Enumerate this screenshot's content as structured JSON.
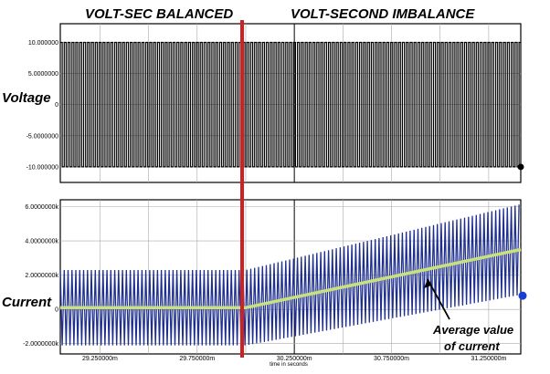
{
  "chart_data": [
    {
      "type": "line",
      "name": "voltage",
      "side_label": "Voltage",
      "yticks": [
        10,
        5,
        0,
        -5,
        -10
      ],
      "ytick_labels": [
        "10.000000",
        "5.0000000",
        "0",
        "-5.0000000",
        "-10.000000"
      ],
      "ylim": [
        -12.5,
        13
      ],
      "square_wave": {
        "high": 10,
        "low": -10,
        "period_ms": 20,
        "start_ms": 29046,
        "end_ms": 31415
      },
      "sections": [
        "VOLT-SEC BALANCED",
        "VOLT-SECOND IMBALANCE"
      ],
      "colors": {
        "trace": "#000000",
        "divider": "#cc2222",
        "grid": "#999999",
        "marker": "#000000"
      }
    },
    {
      "type": "line",
      "name": "current",
      "side_label": "Current",
      "xlabel": "time in seconds",
      "xlim": [
        29046,
        31415
      ],
      "xticks": [
        29250,
        29750,
        30250,
        30750,
        31250
      ],
      "xtick_labels": [
        "29.250000m",
        "29.750000m",
        "30.250000m",
        "30.750000m",
        "31.250000m"
      ],
      "yticks": [
        6,
        4,
        2,
        0,
        -2
      ],
      "ytick_labels": [
        "6.0000000k",
        "4.0000000k",
        "2.0000000k",
        "0",
        "-2.0000000k"
      ],
      "ylim": [
        -2.6,
        6.4
      ],
      "triangle_wave": {
        "amplitude": 2.2,
        "period_ms": 20
      },
      "average_current": {
        "x": [
          29046,
          30000,
          31415
        ],
        "y": [
          0.1,
          0.1,
          3.5
        ]
      },
      "annotation": [
        "Average value",
        "of current"
      ],
      "colors": {
        "trace": "#1f2f8f",
        "average": "#c8e080",
        "marker": "#1a3fd0",
        "grid": "#999999"
      }
    }
  ]
}
